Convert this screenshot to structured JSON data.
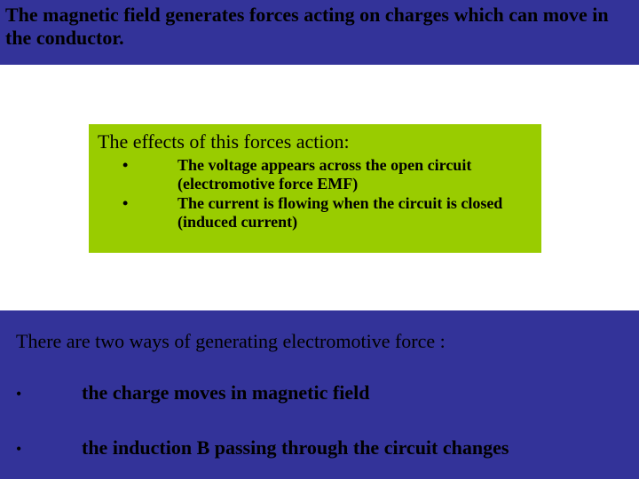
{
  "colors": {
    "banner_bg": "#333399",
    "green_bg": "#99cc00",
    "text": "#000000",
    "page_bg": "#ffffff"
  },
  "typography": {
    "family": "Times New Roman",
    "title_size_pt": 22,
    "body_size_pt": 18
  },
  "top": {
    "text": "The magnetic field generates forces acting on charges which can move in the conductor."
  },
  "green": {
    "title": "The effects of this forces action:",
    "items": [
      "The voltage appears across the open circuit (electromotive force EMF)",
      "The current is flowing when the circuit is closed (induced current)"
    ]
  },
  "bottom": {
    "title": "There are two ways of generating electromotive force :",
    "items": [
      "the charge moves in magnetic field",
      "the induction B passing through the circuit changes"
    ]
  }
}
